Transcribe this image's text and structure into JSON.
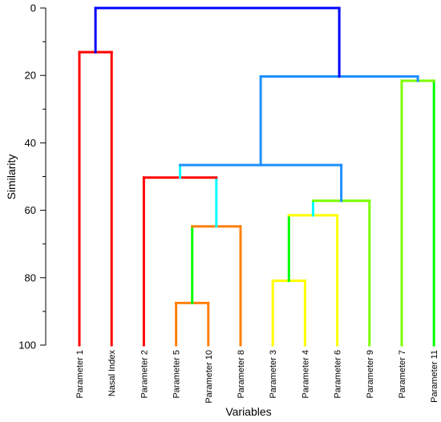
{
  "chart_data": {
    "type": "dendrogram",
    "title": "",
    "xlabel": "Variables",
    "ylabel": "Similarity",
    "ylim": [
      0,
      100
    ],
    "y_ticks": [
      0,
      20,
      40,
      60,
      80,
      100
    ],
    "y_tick_labels": [
      "0",
      "20",
      "40",
      "60",
      "80",
      "100"
    ],
    "leaves": [
      "Parameter 1",
      "Nasal Index",
      "Parameter 2",
      "Parameter 5",
      "Parameter 10",
      "Parameter 8",
      "Parameter 3",
      "Parameter 4",
      "Parameter 6",
      "Parameter 9",
      "Parameter 7",
      "Parameter 11"
    ],
    "merges": [
      {
        "left": 3,
        "right": 4,
        "similarity": 87.5,
        "color": "#ff7f0e"
      },
      {
        "left": 12,
        "right": 5,
        "similarity": 64.8,
        "color": "#ff7f0e"
      },
      {
        "left": 2,
        "right": 13,
        "similarity": 50.3,
        "color": "#ff0000"
      },
      {
        "left": 6,
        "right": 7,
        "similarity": 80.9,
        "color": "#ffff00"
      },
      {
        "left": 15,
        "right": 8,
        "similarity": 61.5,
        "color": "#ffff00"
      },
      {
        "left": 16,
        "right": 9,
        "similarity": 57.2,
        "color": "#7cfc00"
      },
      {
        "left": 14,
        "right": 17,
        "similarity": 46.6,
        "color": "#1e90ff"
      },
      {
        "left": 10,
        "right": 11,
        "similarity": 21.6,
        "color": "#7cfc00"
      },
      {
        "left": 18,
        "right": 19,
        "similarity": 20.3,
        "color": "#1e90ff"
      },
      {
        "left": 0,
        "right": 1,
        "similarity": 13.1,
        "color": "#ff0000"
      },
      {
        "left": 21,
        "right": 20,
        "similarity": 0.0,
        "color": "#0000ff"
      }
    ],
    "branch_colors": {
      "0": "#ff0000",
      "1": "#ff0000",
      "2": "#ff0000",
      "3": "#ff7f0e",
      "4": "#ff7f0e",
      "5": "#ff7f0e",
      "12": "#00ff00",
      "13": "#00ffff",
      "6": "#ffff00",
      "7": "#ffff00",
      "15": "#00ff00",
      "8": "#ffff00",
      "16": "#00ffff",
      "9": "#7cfc00",
      "14": "#00ffff",
      "17": "#1e90ff",
      "10": "#7cfc00",
      "11": "#00ff00",
      "18": "#1e90ff",
      "19": "#1e90ff",
      "21": "#0000ff",
      "20": "#0000ff"
    }
  }
}
